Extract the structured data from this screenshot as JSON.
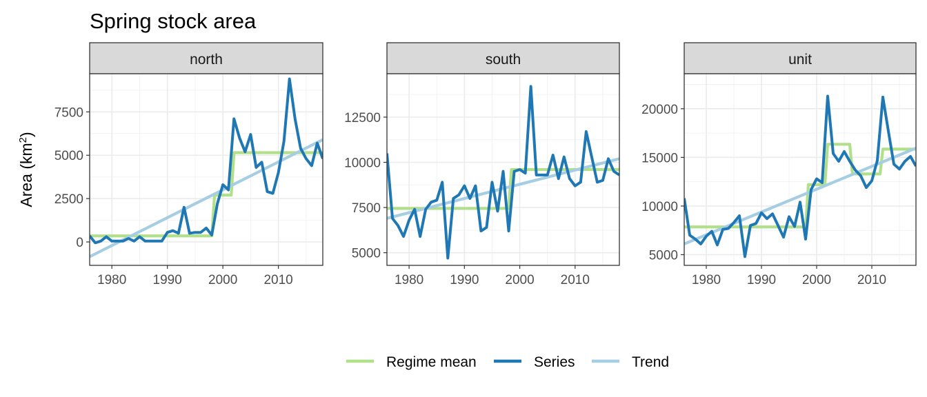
{
  "chart_data": {
    "type": "line",
    "title": "Spring stock area",
    "ylabel": "Area (km",
    "ylabel_sup": "2",
    "ylabel_close": ")",
    "xlabel": "",
    "grid": true,
    "legend_position": "bottom",
    "colors": {
      "Regime mean": "#b2df8a",
      "Series": "#1f78b4",
      "Trend": "#a6cee3"
    },
    "legend": [
      "Regime mean",
      "Series",
      "Trend"
    ],
    "xlim": [
      1976,
      2018
    ],
    "x_ticks": [
      1980,
      1990,
      2000,
      2010
    ],
    "panels": [
      {
        "name": "north",
        "ylim": [
          -1350,
          9700
        ],
        "y_ticks": [
          0,
          2500,
          5000,
          7500
        ],
        "series": [
          {
            "name": "Series",
            "x": [
              1976,
              1977,
              1978,
              1979,
              1980,
              1981,
              1982,
              1983,
              1984,
              1985,
              1986,
              1987,
              1988,
              1989,
              1990,
              1991,
              1992,
              1993,
              1994,
              1995,
              1996,
              1997,
              1998,
              1999,
              2000,
              2001,
              2002,
              2003,
              2004,
              2005,
              2006,
              2007,
              2008,
              2009,
              2010,
              2011,
              2012,
              2013,
              2014,
              2015,
              2016,
              2017,
              2018
            ],
            "y": [
              350,
              -50,
              50,
              300,
              50,
              50,
              50,
              200,
              50,
              300,
              50,
              50,
              50,
              50,
              550,
              650,
              500,
              2000,
              500,
              550,
              550,
              800,
              400,
              2200,
              3300,
              3000,
              7100,
              6000,
              5200,
              6200,
              4300,
              4600,
              2900,
              2800,
              4000,
              5800,
              9400,
              7100,
              5400,
              4800,
              4400,
              5700,
              4800
            ]
          },
          {
            "name": "Regime mean",
            "x": [
              1976,
              1998,
              1998.5,
              2001.5,
              2002,
              2018
            ],
            "y": [
              350,
              350,
              2700,
              2700,
              5150,
              5150
            ]
          },
          {
            "name": "Trend",
            "x": [
              1976,
              2018
            ],
            "y": [
              -850,
              5900
            ]
          }
        ]
      },
      {
        "name": "south",
        "ylim": [
          4300,
          14900
        ],
        "y_ticks": [
          5000,
          7500,
          10000,
          12500
        ],
        "series": [
          {
            "name": "Series",
            "x": [
              1976,
              1977,
              1978,
              1979,
              1980,
              1981,
              1982,
              1983,
              1984,
              1985,
              1986,
              1987,
              1988,
              1989,
              1990,
              1991,
              1992,
              1993,
              1994,
              1995,
              1996,
              1997,
              1998,
              1999,
              2000,
              2001,
              2002,
              2003,
              2004,
              2005,
              2006,
              2007,
              2008,
              2009,
              2010,
              2011,
              2012,
              2013,
              2014,
              2015,
              2016,
              2017,
              2018
            ],
            "y": [
              10500,
              6900,
              6500,
              5900,
              6800,
              7400,
              5900,
              7400,
              7800,
              7900,
              8900,
              4700,
              8000,
              8200,
              8700,
              8000,
              8700,
              6200,
              6400,
              8900,
              7300,
              9500,
              6200,
              9500,
              9600,
              9400,
              14200,
              9300,
              9300,
              9300,
              10400,
              9100,
              10300,
              9100,
              8700,
              8900,
              11700,
              10300,
              8900,
              9000,
              10200,
              9500,
              9300
            ]
          },
          {
            "name": "Regime mean",
            "x": [
              1976,
              1998,
              1998.5,
              2018
            ],
            "y": [
              7450,
              7450,
              9600,
              9600
            ]
          },
          {
            "name": "Trend",
            "x": [
              1976,
              2018
            ],
            "y": [
              6900,
              10200
            ]
          }
        ]
      },
      {
        "name": "unit",
        "ylim": [
          3900,
          23600
        ],
        "y_ticks": [
          5000,
          10000,
          15000,
          20000
        ],
        "series": [
          {
            "name": "Series",
            "x": [
              1976,
              1977,
              1978,
              1979,
              1980,
              1981,
              1982,
              1983,
              1984,
              1985,
              1986,
              1987,
              1988,
              1989,
              1990,
              1991,
              1992,
              1993,
              1994,
              1995,
              1996,
              1997,
              1998,
              1999,
              2000,
              2001,
              2002,
              2003,
              2004,
              2005,
              2006,
              2007,
              2008,
              2009,
              2010,
              2011,
              2012,
              2013,
              2014,
              2015,
              2016,
              2017,
              2018
            ],
            "y": [
              10800,
              7000,
              6600,
              6100,
              6900,
              7400,
              6000,
              7600,
              7700,
              8300,
              9000,
              4800,
              8000,
              8200,
              9300,
              8700,
              9200,
              8000,
              6800,
              8900,
              7900,
              10400,
              6600,
              11700,
              12800,
              12400,
              21300,
              15400,
              14600,
              15600,
              14600,
              13700,
              13100,
              11900,
              12600,
              14700,
              21200,
              17700,
              14300,
              13800,
              14600,
              15100,
              14100
            ]
          },
          {
            "name": "Regime mean",
            "x": [
              1976,
              1998,
              1998.5,
              2001.5,
              2002,
              2006,
              2006.5,
              2011.5,
              2012,
              2018
            ],
            "y": [
              7850,
              7850,
              12200,
              12200,
              16350,
              16350,
              13300,
              13300,
              15850,
              15850
            ]
          },
          {
            "name": "Trend",
            "x": [
              1976,
              2018
            ],
            "y": [
              6100,
              15950
            ]
          }
        ]
      }
    ]
  }
}
